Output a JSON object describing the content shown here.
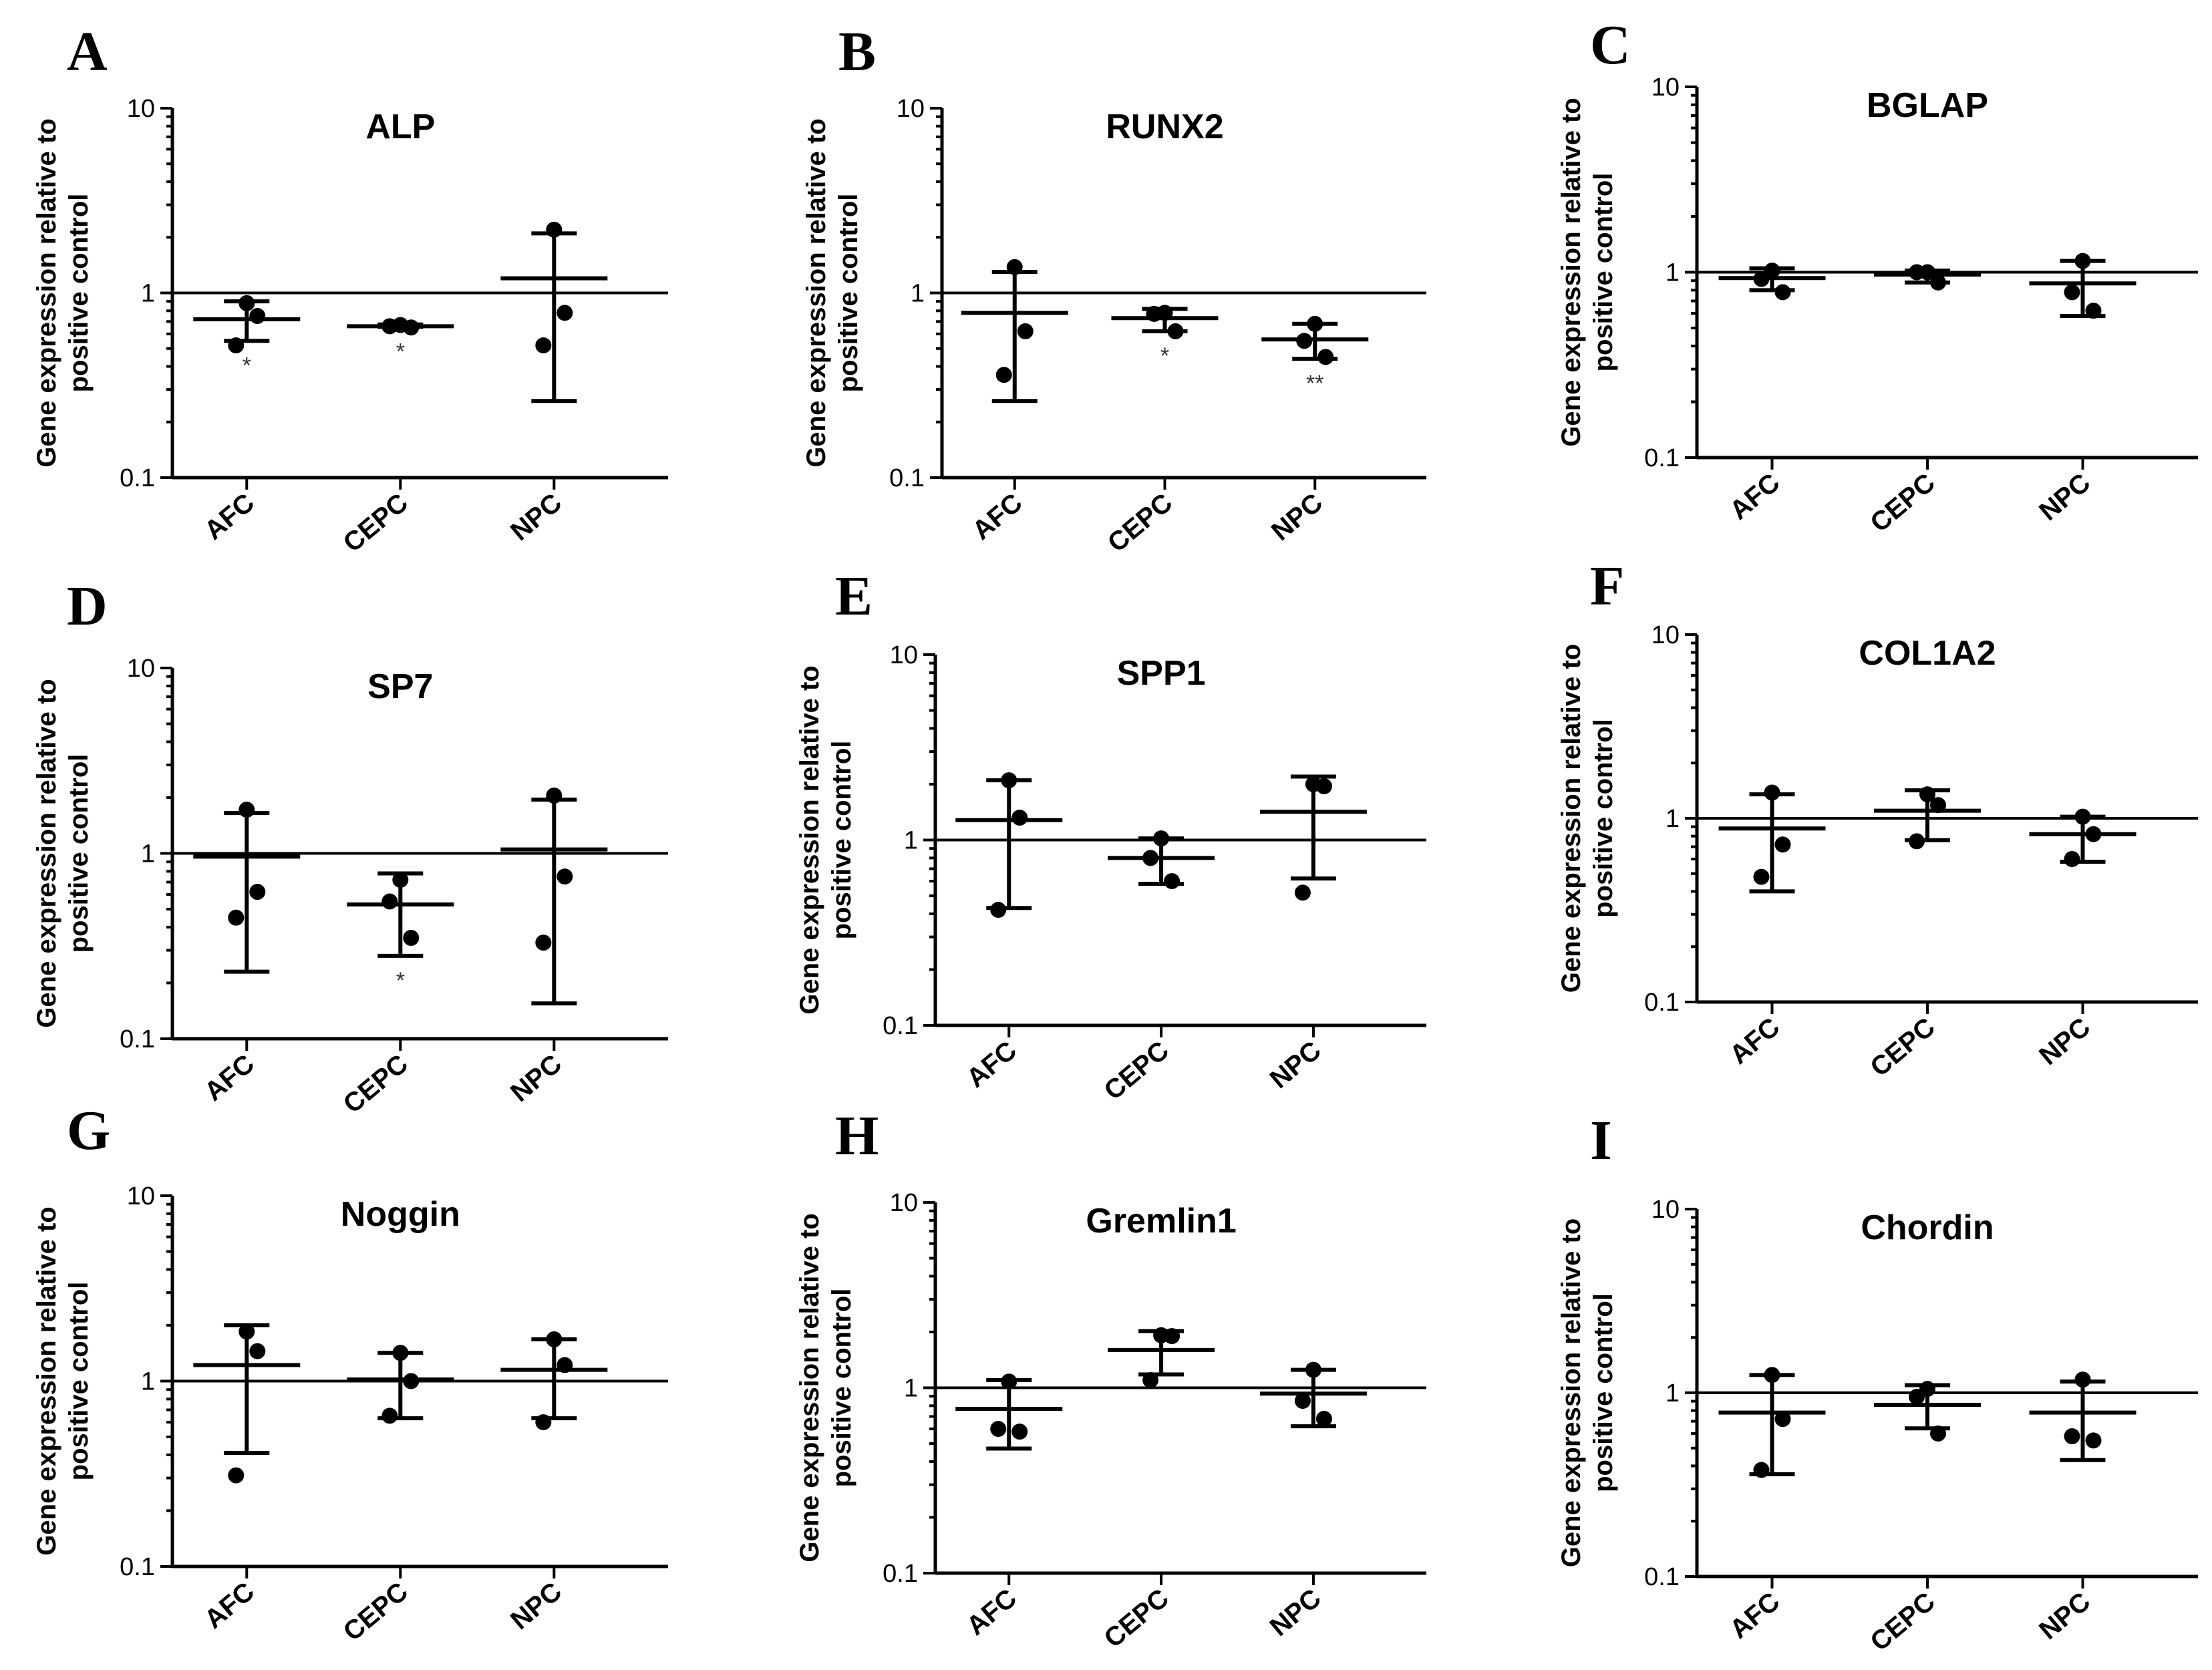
{
  "chart_data": [
    {
      "type": "scatter",
      "panel": "A",
      "title": "ALP",
      "ylabel": "Gene expression relative to positive control",
      "yscale": "log",
      "ylim": [
        0.1,
        10
      ],
      "yticks": [
        "0.1",
        "1",
        "10"
      ],
      "categories": [
        "AFC",
        "CEPC",
        "NPC"
      ],
      "reference_line": 1,
      "groups": [
        {
          "category": "AFC",
          "points": [
            0.88,
            0.75,
            0.52
          ],
          "mean": 0.72,
          "err_low": 0.55,
          "err_high": 0.9,
          "sig": "*"
        },
        {
          "category": "CEPC",
          "points": [
            0.67,
            0.65,
            0.66
          ],
          "mean": 0.66,
          "err_low": 0.655,
          "err_high": 0.675,
          "sig": "*"
        },
        {
          "category": "NPC",
          "points": [
            2.2,
            0.78,
            0.52
          ],
          "mean": 1.2,
          "err_low": 0.26,
          "err_high": 2.1,
          "sig": ""
        }
      ]
    },
    {
      "type": "scatter",
      "panel": "B",
      "title": "RUNX2",
      "ylabel": "Gene expression relative to positive control",
      "yscale": "log",
      "ylim": [
        0.1,
        10
      ],
      "yticks": [
        "0.1",
        "1",
        "10"
      ],
      "categories": [
        "AFC",
        "CEPC",
        "NPC"
      ],
      "reference_line": 1,
      "groups": [
        {
          "category": "AFC",
          "points": [
            1.38,
            0.62,
            0.36
          ],
          "mean": 0.78,
          "err_low": 0.26,
          "err_high": 1.3,
          "sig": ""
        },
        {
          "category": "CEPC",
          "points": [
            0.78,
            0.62,
            0.77
          ],
          "mean": 0.73,
          "err_low": 0.62,
          "err_high": 0.82,
          "sig": "*"
        },
        {
          "category": "NPC",
          "points": [
            0.68,
            0.45,
            0.55
          ],
          "mean": 0.56,
          "err_low": 0.44,
          "err_high": 0.68,
          "sig": "**"
        }
      ]
    },
    {
      "type": "scatter",
      "panel": "C",
      "title": "BGLAP",
      "ylabel": "Gene expression relative to positive control",
      "yscale": "log",
      "ylim": [
        0.1,
        10
      ],
      "yticks": [
        "0.1",
        "1",
        "10"
      ],
      "categories": [
        "AFC",
        "CEPC",
        "NPC"
      ],
      "reference_line": 1,
      "groups": [
        {
          "category": "AFC",
          "points": [
            1.02,
            0.78,
            0.92
          ],
          "mean": 0.93,
          "err_low": 0.8,
          "err_high": 1.05,
          "sig": ""
        },
        {
          "category": "CEPC",
          "points": [
            1.0,
            0.88,
            1.0
          ],
          "mean": 0.97,
          "err_low": 0.88,
          "err_high": 1.02,
          "sig": ""
        },
        {
          "category": "NPC",
          "points": [
            1.15,
            0.62,
            0.78
          ],
          "mean": 0.87,
          "err_low": 0.58,
          "err_high": 1.15,
          "sig": ""
        }
      ]
    },
    {
      "type": "scatter",
      "panel": "D",
      "title": "SP7",
      "ylabel": "Gene expression relative to positive control",
      "yscale": "log",
      "ylim": [
        0.1,
        10
      ],
      "yticks": [
        "0.1",
        "1",
        "10"
      ],
      "categories": [
        "AFC",
        "CEPC",
        "NPC"
      ],
      "reference_line": 1,
      "groups": [
        {
          "category": "AFC",
          "points": [
            1.72,
            0.62,
            0.45
          ],
          "mean": 0.96,
          "err_low": 0.23,
          "err_high": 1.65,
          "sig": ""
        },
        {
          "category": "CEPC",
          "points": [
            0.72,
            0.35,
            0.55
          ],
          "mean": 0.53,
          "err_low": 0.28,
          "err_high": 0.78,
          "sig": "*"
        },
        {
          "category": "NPC",
          "points": [
            2.05,
            0.75,
            0.33
          ],
          "mean": 1.05,
          "err_low": 0.155,
          "err_high": 1.95,
          "sig": ""
        }
      ]
    },
    {
      "type": "scatter",
      "panel": "E",
      "title": "SPP1",
      "ylabel": "Gene expression relative to positive control",
      "yscale": "log",
      "ylim": [
        0.1,
        10
      ],
      "yticks": [
        "0.1",
        "1",
        "10"
      ],
      "categories": [
        "AFC",
        "CEPC",
        "NPC"
      ],
      "reference_line": 1,
      "groups": [
        {
          "category": "AFC",
          "points": [
            2.1,
            1.32,
            0.42
          ],
          "mean": 1.28,
          "err_low": 0.43,
          "err_high": 2.1,
          "sig": ""
        },
        {
          "category": "CEPC",
          "points": [
            1.02,
            0.6,
            0.8
          ],
          "mean": 0.8,
          "err_low": 0.58,
          "err_high": 1.02,
          "sig": ""
        },
        {
          "category": "NPC",
          "points": [
            2.0,
            1.95,
            0.52
          ],
          "mean": 1.42,
          "err_low": 0.62,
          "err_high": 2.2,
          "sig": ""
        }
      ]
    },
    {
      "type": "scatter",
      "panel": "F",
      "title": "COL1A2",
      "ylabel": "Gene expression relative to positive control",
      "yscale": "log",
      "ylim": [
        0.1,
        10
      ],
      "yticks": [
        "0.1",
        "1",
        "10"
      ],
      "categories": [
        "AFC",
        "CEPC",
        "NPC"
      ],
      "reference_line": 1,
      "groups": [
        {
          "category": "AFC",
          "points": [
            1.38,
            0.72,
            0.48
          ],
          "mean": 0.88,
          "err_low": 0.4,
          "err_high": 1.35,
          "sig": ""
        },
        {
          "category": "CEPC",
          "points": [
            1.35,
            1.18,
            0.75
          ],
          "mean": 1.1,
          "err_low": 0.76,
          "err_high": 1.42,
          "sig": ""
        },
        {
          "category": "NPC",
          "points": [
            1.02,
            0.82,
            0.6
          ],
          "mean": 0.82,
          "err_low": 0.58,
          "err_high": 1.02,
          "sig": ""
        }
      ]
    },
    {
      "type": "scatter",
      "panel": "G",
      "title": "Noggin",
      "ylabel": "Gene expression relative to positive control",
      "yscale": "log",
      "ylim": [
        0.1,
        10
      ],
      "yticks": [
        "0.1",
        "1",
        "10"
      ],
      "categories": [
        "AFC",
        "CEPC",
        "NPC"
      ],
      "reference_line": 1,
      "groups": [
        {
          "category": "AFC",
          "points": [
            1.85,
            1.45,
            0.31
          ],
          "mean": 1.22,
          "err_low": 0.41,
          "err_high": 2.0,
          "sig": ""
        },
        {
          "category": "CEPC",
          "points": [
            1.42,
            1.0,
            0.65
          ],
          "mean": 1.02,
          "err_low": 0.63,
          "err_high": 1.42,
          "sig": ""
        },
        {
          "category": "NPC",
          "points": [
            1.68,
            1.22,
            0.6
          ],
          "mean": 1.15,
          "err_low": 0.63,
          "err_high": 1.68,
          "sig": ""
        }
      ]
    },
    {
      "type": "scatter",
      "panel": "H",
      "title": "Gremlin1",
      "ylabel": "Gene expression relative to positive control",
      "yscale": "log",
      "ylim": [
        0.1,
        10
      ],
      "yticks": [
        "0.1",
        "1",
        "10"
      ],
      "categories": [
        "AFC",
        "CEPC",
        "NPC"
      ],
      "reference_line": 1,
      "groups": [
        {
          "category": "AFC",
          "points": [
            1.08,
            0.58,
            0.6
          ],
          "mean": 0.77,
          "err_low": 0.47,
          "err_high": 1.1,
          "sig": ""
        },
        {
          "category": "CEPC",
          "points": [
            1.92,
            1.9,
            1.1
          ],
          "mean": 1.6,
          "err_low": 1.18,
          "err_high": 2.02,
          "sig": ""
        },
        {
          "category": "NPC",
          "points": [
            1.25,
            0.68,
            0.85
          ],
          "mean": 0.93,
          "err_low": 0.62,
          "err_high": 1.25,
          "sig": ""
        }
      ]
    },
    {
      "type": "scatter",
      "panel": "I",
      "title": "Chordin",
      "ylabel": "Gene expression relative to positive control",
      "yscale": "log",
      "ylim": [
        0.1,
        10
      ],
      "yticks": [
        "0.1",
        "1",
        "10"
      ],
      "categories": [
        "AFC",
        "CEPC",
        "NPC"
      ],
      "reference_line": 1,
      "groups": [
        {
          "category": "AFC",
          "points": [
            1.25,
            0.72,
            0.38
          ],
          "mean": 0.78,
          "err_low": 0.36,
          "err_high": 1.25,
          "sig": ""
        },
        {
          "category": "CEPC",
          "points": [
            1.05,
            0.6,
            0.95
          ],
          "mean": 0.86,
          "err_low": 0.64,
          "err_high": 1.1,
          "sig": ""
        },
        {
          "category": "NPC",
          "points": [
            1.18,
            0.55,
            0.58
          ],
          "mean": 0.78,
          "err_low": 0.43,
          "err_high": 1.15,
          "sig": ""
        }
      ]
    }
  ]
}
